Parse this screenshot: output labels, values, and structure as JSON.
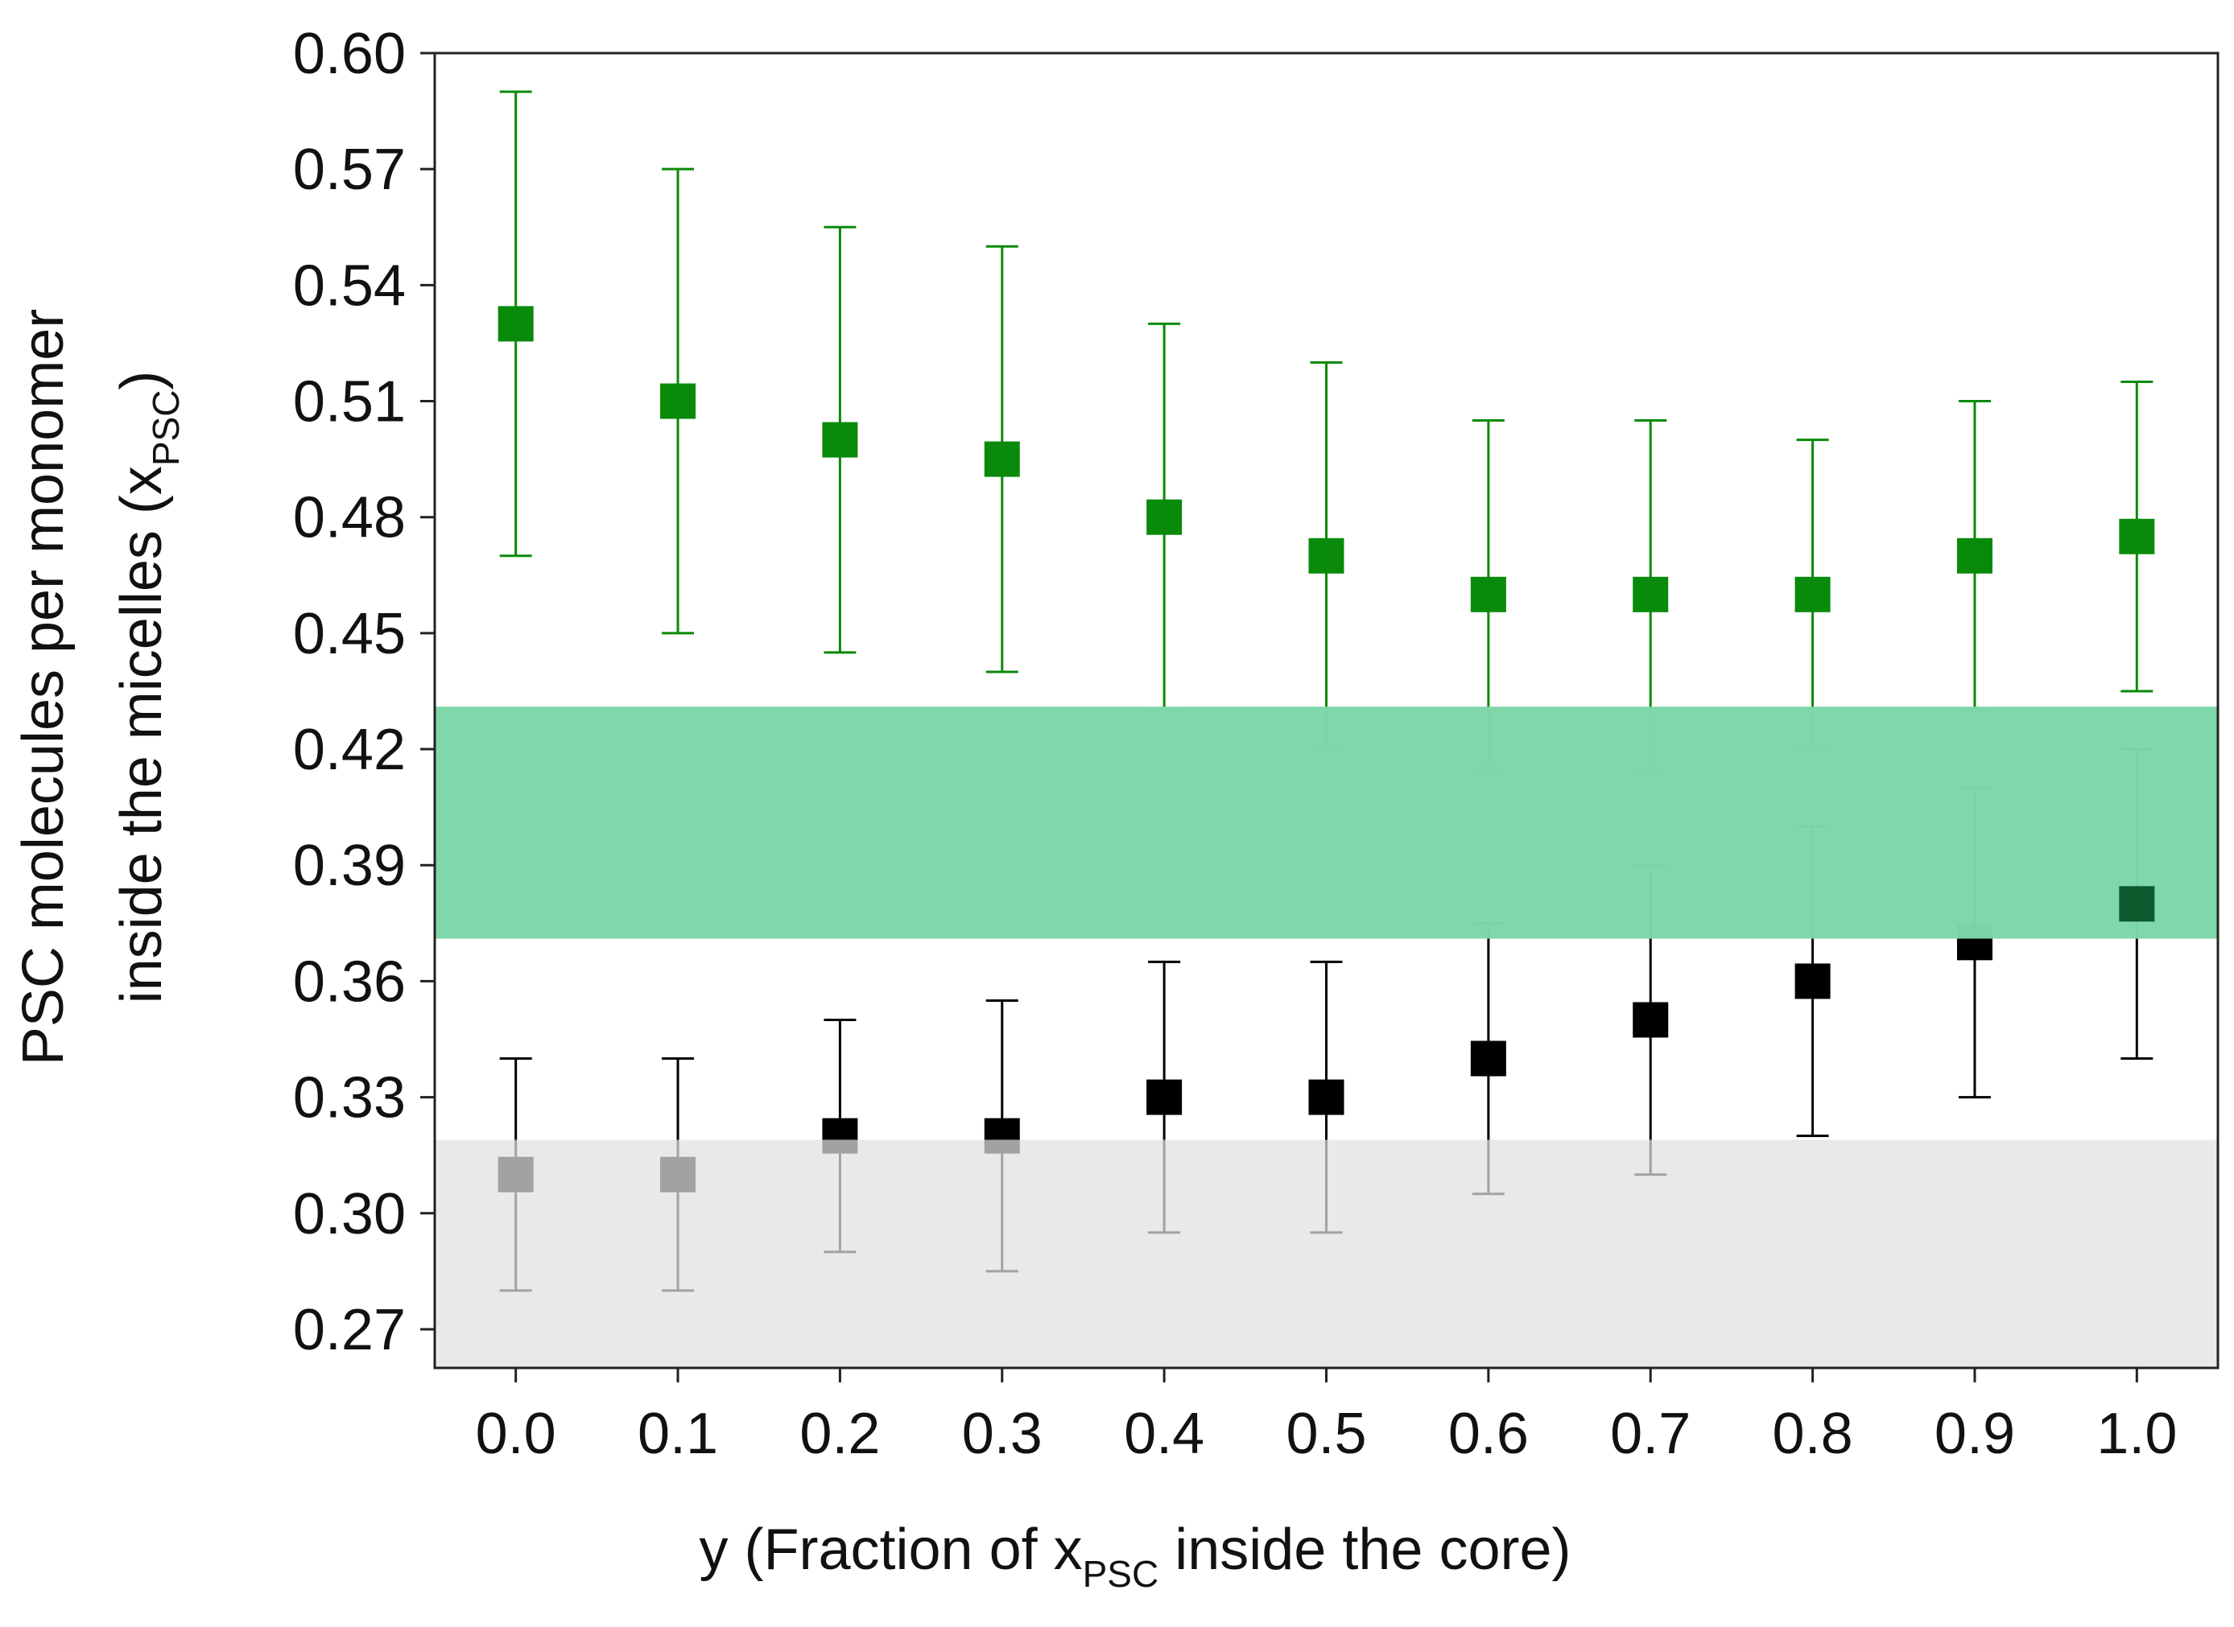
{
  "chart_data": {
    "type": "scatter",
    "title": "",
    "xlabel": {
      "main": "y (Fraction of x",
      "sub": "PSC",
      "tail": " inside the core)"
    },
    "ylabel": {
      "line1": "PSC molecules per monomer",
      "line2_main": "inside the micelles (x",
      "line2_sub": "PSC",
      "line2_tail": ")"
    },
    "xlim": [
      -0.05,
      1.05
    ],
    "ylim": [
      0.26,
      0.6
    ],
    "x_ticks": [
      0.0,
      0.1,
      0.2,
      0.3,
      0.4,
      0.5,
      0.6,
      0.7,
      0.8,
      0.9,
      1.0
    ],
    "x_tick_labels": [
      "0.0",
      "0.1",
      "0.2",
      "0.3",
      "0.4",
      "0.5",
      "0.6",
      "0.7",
      "0.8",
      "0.9",
      "1.0"
    ],
    "y_ticks": [
      0.27,
      0.3,
      0.33,
      0.36,
      0.39,
      0.42,
      0.45,
      0.48,
      0.51,
      0.54,
      0.57,
      0.6
    ],
    "y_tick_labels": [
      "0.27",
      "0.30",
      "0.33",
      "0.36",
      "0.39",
      "0.42",
      "0.45",
      "0.48",
      "0.51",
      "0.54",
      "0.57",
      "0.60"
    ],
    "bands": [
      {
        "name": "green-band",
        "y_range": [
          0.371,
          0.431
        ],
        "color": "#7dd6a7"
      },
      {
        "name": "gray-band",
        "y_range": [
          0.26,
          0.319
        ],
        "color": "#e0e0e0"
      }
    ],
    "series": [
      {
        "name": "green",
        "color": "#0a8a0a",
        "x": [
          0.0,
          0.1,
          0.2,
          0.3,
          0.4,
          0.5,
          0.6,
          0.7,
          0.8,
          0.9,
          1.0
        ],
        "values": [
          0.53,
          0.51,
          0.5,
          0.495,
          0.48,
          0.47,
          0.46,
          0.46,
          0.46,
          0.47,
          0.475
        ],
        "err_low": [
          0.47,
          0.45,
          0.445,
          0.44,
          0.43,
          0.42,
          0.415,
          0.415,
          0.42,
          0.43,
          0.435
        ],
        "err_high": [
          0.59,
          0.57,
          0.555,
          0.55,
          0.53,
          0.52,
          0.505,
          0.505,
          0.5,
          0.51,
          0.515
        ]
      },
      {
        "name": "black",
        "color": "#000000",
        "x": [
          0.0,
          0.1,
          0.2,
          0.3,
          0.4,
          0.5,
          0.6,
          0.7,
          0.8,
          0.9,
          1.0
        ],
        "values": [
          0.31,
          0.31,
          0.32,
          0.32,
          0.33,
          0.33,
          0.34,
          0.35,
          0.36,
          0.37,
          0.38
        ],
        "err_low": [
          0.28,
          0.28,
          0.29,
          0.285,
          0.295,
          0.295,
          0.305,
          0.31,
          0.32,
          0.33,
          0.34
        ],
        "err_high": [
          0.34,
          0.34,
          0.35,
          0.355,
          0.365,
          0.365,
          0.375,
          0.39,
          0.4,
          0.41,
          0.42
        ]
      }
    ]
  }
}
